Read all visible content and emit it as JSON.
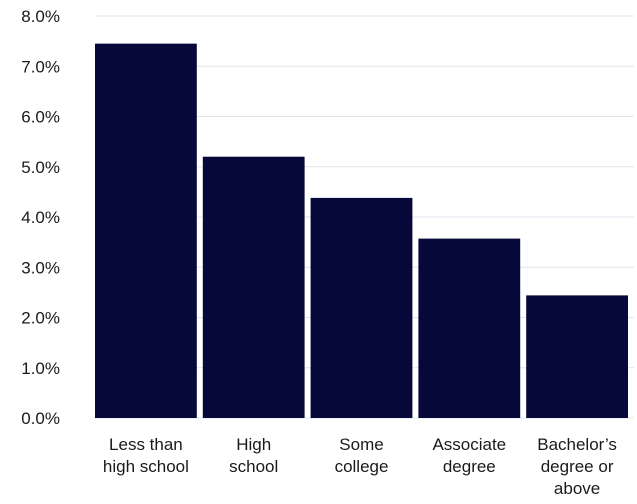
{
  "chart_data": {
    "type": "bar",
    "title": "",
    "xlabel": "",
    "ylabel": "",
    "categories": [
      [
        "Less than",
        "high school"
      ],
      [
        "High",
        "school"
      ],
      [
        "Some",
        "college"
      ],
      [
        "Associate",
        "degree"
      ],
      [
        "Bachelor’s",
        "degree or",
        "above"
      ]
    ],
    "values": [
      7.45,
      5.2,
      4.38,
      3.57,
      2.44
    ],
    "ylim": [
      0,
      8
    ],
    "yticks": [
      "0.0%",
      "1.0%",
      "2.0%",
      "3.0%",
      "4.0%",
      "5.0%",
      "6.0%",
      "7.0%",
      "8.0%"
    ],
    "grid": true,
    "bar_color": "#050838",
    "grid_color": "#dfe6ec"
  }
}
